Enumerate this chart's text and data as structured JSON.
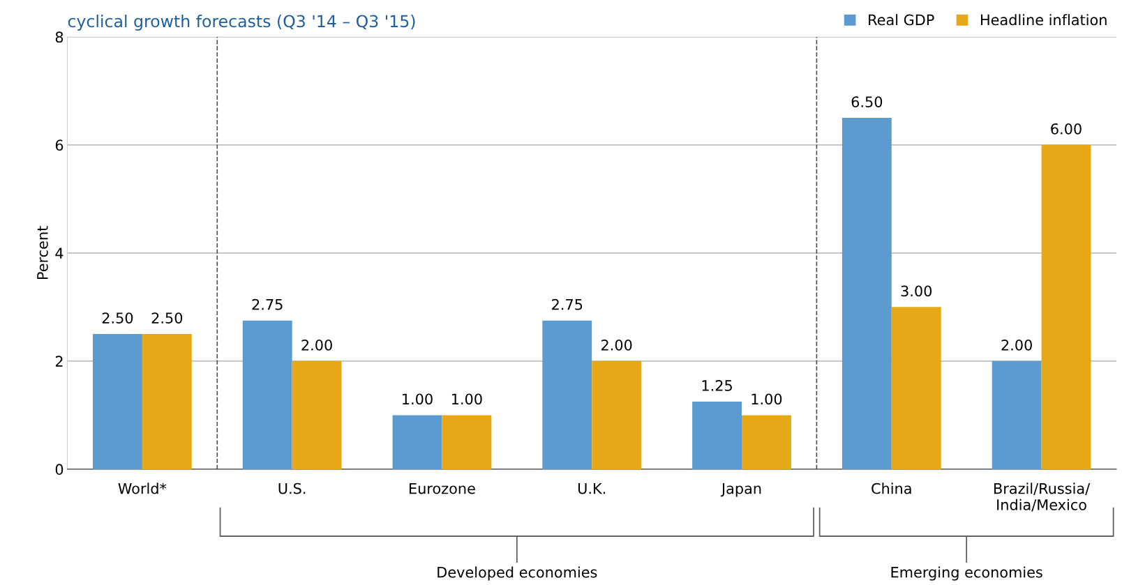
{
  "chart_data": {
    "type": "bar",
    "title": "cyclical growth forecasts (Q3 '14 – Q3 '15)",
    "ylabel": "Percent",
    "categories": [
      "World*",
      "U.S.",
      "Eurozone",
      "U.K.",
      "Japan",
      "China",
      "Brazil/Russia/\nIndia/Mexico"
    ],
    "series": [
      {
        "name": "Real GDP",
        "color": "#5b9bd0",
        "values": [
          2.5,
          2.75,
          1.0,
          2.75,
          1.25,
          6.5,
          2.0
        ],
        "value_labels": [
          "2.50",
          "2.75",
          "1.00",
          "2.75",
          "1.25",
          "6.50",
          "2.00"
        ]
      },
      {
        "name": "Headline inflation",
        "color": "#e6a817",
        "values": [
          2.5,
          2.0,
          1.0,
          2.0,
          1.0,
          3.0,
          6.0
        ],
        "value_labels": [
          "2.50",
          "2.00",
          "1.00",
          "2.00",
          "1.00",
          "3.00",
          "6.00"
        ]
      }
    ],
    "ylim": [
      0,
      8
    ],
    "yticks": [
      0,
      2,
      4,
      6,
      8
    ],
    "grid": "y",
    "legend": "top right",
    "annotations": [
      "Developed economies",
      "Emerging economies"
    ]
  }
}
